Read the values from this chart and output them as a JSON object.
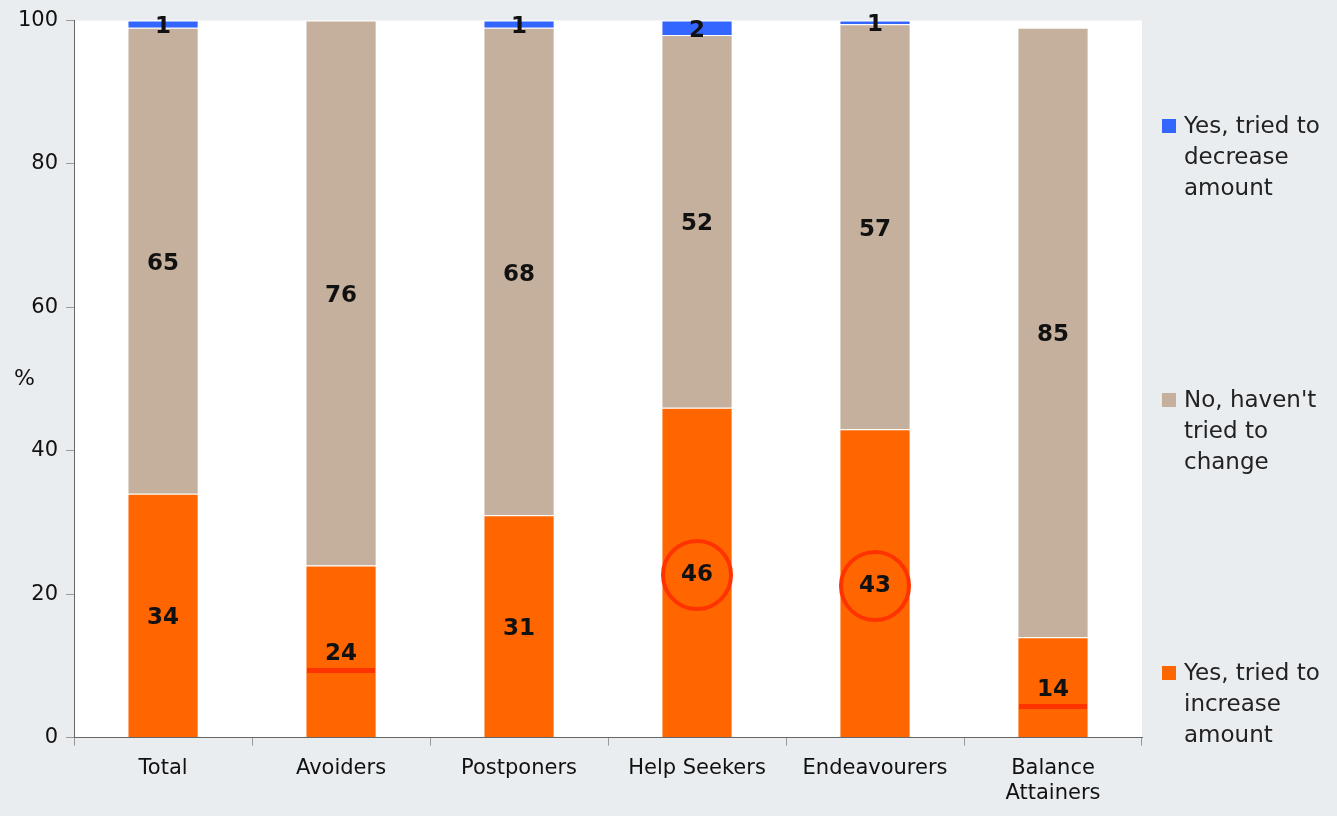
{
  "chart_data": {
    "type": "bar",
    "stacked": true,
    "ylabel": "%",
    "categories": [
      "Total",
      "Avoiders",
      "Postponers",
      "Help Seekers",
      "Endeavourers",
      "Balance Attainers"
    ],
    "series": [
      {
        "name": "Yes, tried to increase amount",
        "color": "#ff6600",
        "values": [
          34,
          24,
          31,
          46,
          43,
          14
        ],
        "value_labels": [
          "34",
          "24",
          "31",
          "46",
          "43",
          "14"
        ]
      },
      {
        "name": "No, haven't tried to change",
        "color": "#c4b09c",
        "values": [
          65,
          76,
          68,
          52,
          56.5,
          85
        ],
        "value_labels": [
          "65",
          "76",
          "68",
          "52",
          "57",
          "85"
        ]
      },
      {
        "name": "Yes, tried to decrease amount",
        "color": "#3366ff",
        "values": [
          1,
          null,
          1,
          2,
          0.5,
          null
        ],
        "value_labels": [
          "1",
          null,
          "1",
          "2",
          "1",
          null
        ]
      }
    ],
    "ylim": [
      0,
      100
    ],
    "yticks": [
      0,
      20,
      40,
      60,
      80,
      100
    ],
    "grid": false,
    "legend": "right"
  }
}
